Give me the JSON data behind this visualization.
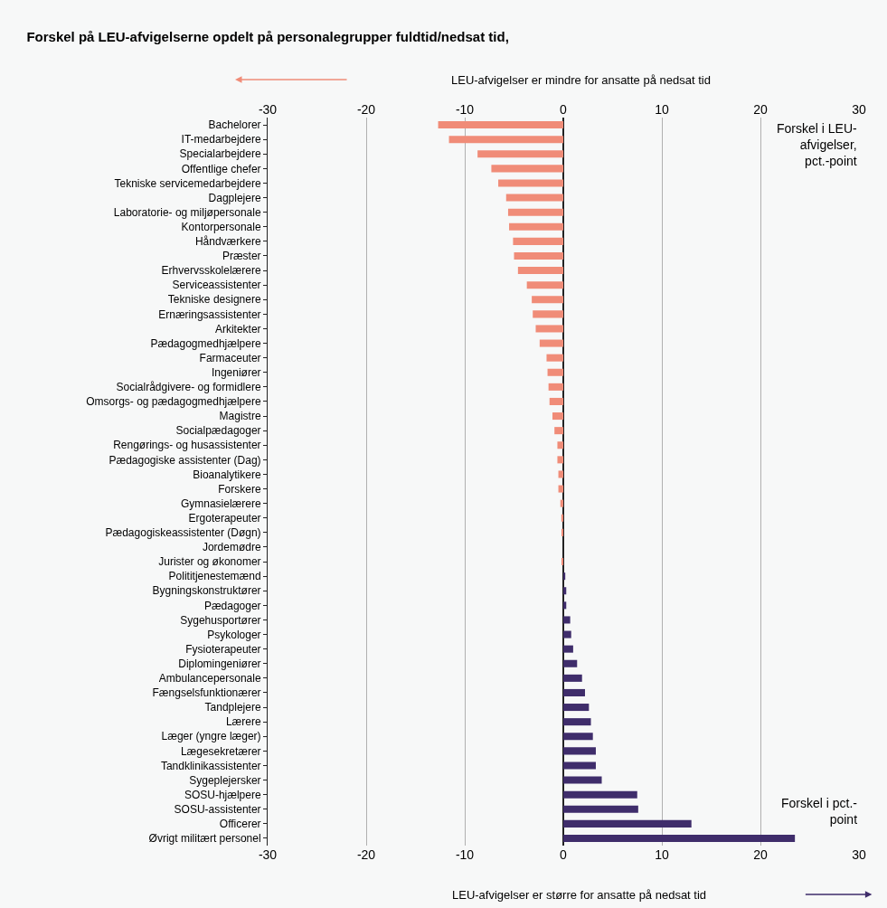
{
  "chart_data": {
    "type": "bar",
    "orientation": "horizontal",
    "title": "Forskel på LEU-afvigelserne opdelt på personalegrupper fuldtid/nedsat tid,",
    "categories": [
      "Bachelorer",
      "IT-medarbejdere",
      "Specialarbejdere",
      "Offentlige chefer",
      "Tekniske servicemedarbejdere",
      "Dagplejere",
      "Laboratorie- og miljøpersonale",
      "Kontorpersonale",
      "Håndværkere",
      "Præster",
      "Erhvervsskolelærere",
      "Serviceassistenter",
      "Tekniske designere",
      "Ernæringsassistenter",
      "Arkitekter",
      "Pædagogmedhjælpere",
      "Farmaceuter",
      "Ingeniører",
      "Socialrådgivere- og formidlere",
      "Omsorgs- og pædagogmedhjælpere",
      "Magistre",
      "Socialpædagoger",
      "Rengørings- og husassistenter",
      "Pædagogiske assistenter (Dag)",
      "Bioanalytikere",
      "Forskere",
      "Gymnasielærere",
      "Ergoterapeuter",
      "Pædagogiskeassistenter (Døgn)",
      "Jordemødre",
      "Jurister og økonomer",
      "Polititjenestemænd",
      "Bygningskonstruktører",
      "Pædagoger",
      "Sygehusportører",
      "Psykologer",
      "Fysioterapeuter",
      "Diplomingeniører",
      "Ambulancepersonale",
      "Fængselsfunktionærer",
      "Tandplejere",
      "Lærere",
      "Læger (yngre læger)",
      "Lægesekretærer",
      "Tandklinikassistenter",
      "Sygeplejersker",
      "SOSU-hjælpere",
      "SOSU-assistenter",
      "Officerer",
      "Øvrigt militært personel"
    ],
    "values": [
      -12.7,
      -11.6,
      -8.7,
      -7.3,
      -6.6,
      -5.8,
      -5.6,
      -5.5,
      -5.1,
      -5.0,
      -4.6,
      -3.7,
      -3.2,
      -3.1,
      -2.8,
      -2.4,
      -1.7,
      -1.6,
      -1.5,
      -1.4,
      -1.1,
      -0.9,
      -0.6,
      -0.6,
      -0.5,
      -0.5,
      -0.3,
      -0.2,
      -0.1,
      0,
      -0.1,
      0.2,
      0.3,
      0.3,
      0.7,
      0.8,
      1.0,
      1.4,
      1.9,
      2.2,
      2.6,
      2.8,
      3.0,
      3.3,
      3.3,
      3.9,
      7.5,
      7.6,
      13.0,
      23.5
    ],
    "colors": [
      "#f08c78",
      "#f08c78",
      "#f08c78",
      "#f08c78",
      "#f08c78",
      "#f08c78",
      "#f08c78",
      "#f08c78",
      "#f08c78",
      "#f08c78",
      "#f08c78",
      "#f08c78",
      "#f08c78",
      "#f08c78",
      "#f08c78",
      "#f08c78",
      "#f08c78",
      "#f08c78",
      "#f08c78",
      "#f08c78",
      "#f08c78",
      "#f08c78",
      "#f08c78",
      "#f08c78",
      "#f08c78",
      "#f08c78",
      "#f08c78",
      "#f08c78",
      "#f08c78",
      "#f08c78",
      "#f08c78",
      "#3f2d6b",
      "#3f2d6b",
      "#3f2d6b",
      "#3f2d6b",
      "#3f2d6b",
      "#3f2d6b",
      "#3f2d6b",
      "#3f2d6b",
      "#3f2d6b",
      "#3f2d6b",
      "#3f2d6b",
      "#3f2d6b",
      "#3f2d6b",
      "#3f2d6b",
      "#3f2d6b",
      "#3f2d6b",
      "#3f2d6b",
      "#3f2d6b",
      "#3f2d6b"
    ],
    "xlim": [
      -30,
      30
    ],
    "xticks": [
      -30,
      -20,
      -10,
      0,
      10,
      20,
      30
    ],
    "x2lim": [
      -30,
      30
    ],
    "x2ticks": [
      -30,
      -20,
      -10,
      0,
      10,
      20,
      30
    ],
    "grid": "x",
    "annotations": [
      "LEU-afvigelser er mindre for ansatte på nedsat tid",
      "LEU-afvigelser er større for ansatte på nedsat tid",
      "Forskel i LEU-\nafvigelser,\npct.-point",
      "Forskel i pct.-\npoint"
    ]
  }
}
